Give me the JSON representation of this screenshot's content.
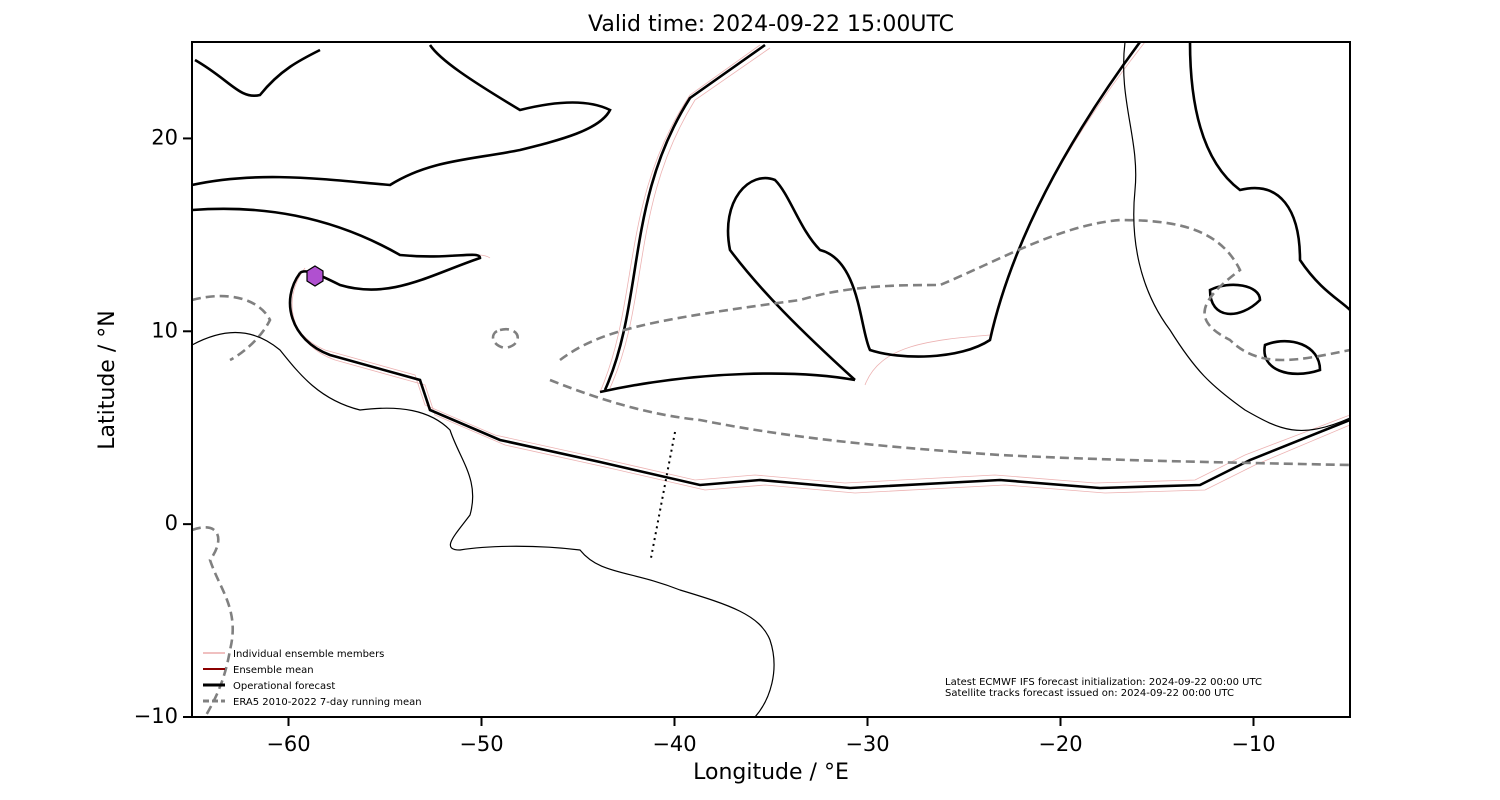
{
  "chart_data": {
    "type": "map",
    "title": "Valid time: 2024-09-22 15:00UTC",
    "x_label": "Longitude / °E",
    "y_label": "Latitude / °N",
    "xlim": [
      -65,
      -5
    ],
    "ylim": [
      -10,
      25
    ],
    "xticks": [
      {
        "value": -60,
        "label": "−60"
      },
      {
        "value": -50,
        "label": "−50"
      },
      {
        "value": -40,
        "label": "−40"
      },
      {
        "value": -30,
        "label": "−30"
      },
      {
        "value": -20,
        "label": "−20"
      },
      {
        "value": -10,
        "label": "−10"
      }
    ],
    "yticks": [
      {
        "value": -10,
        "label": "−10"
      },
      0,
      10,
      20
    ],
    "legend": [
      "Individual ensemble members",
      "Ensemble mean",
      "Operational forecast",
      "ERA5 2010-2022 7-day running mean"
    ],
    "annotations": [
      "Latest ECMWF IFS forecast initialization: 2024-09-22 00:00 UTC",
      "Satellite tracks forecast issued on: 2024-09-22 00:00 UTC"
    ]
  }
}
